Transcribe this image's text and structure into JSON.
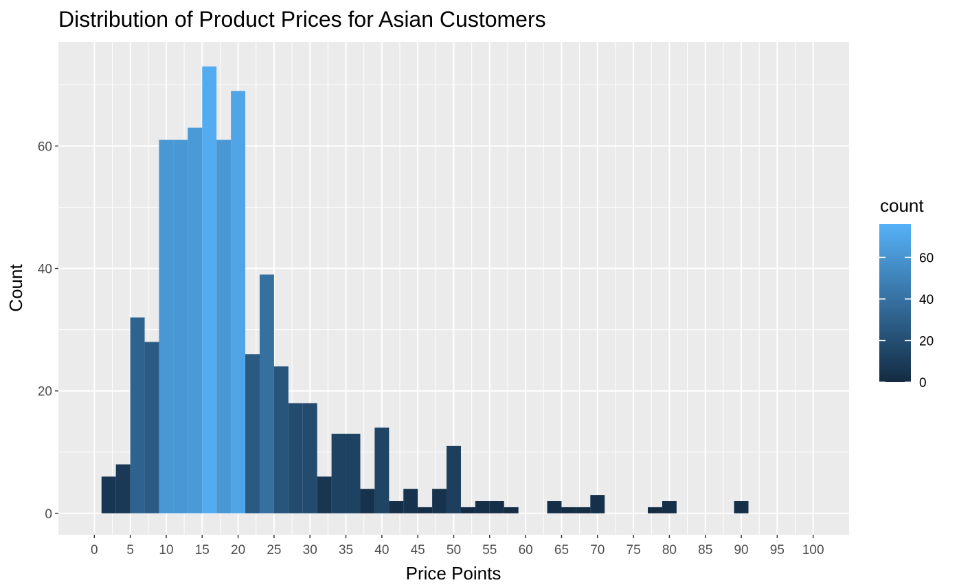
{
  "chart_data": {
    "type": "bar",
    "subtype": "histogram",
    "title": "Distribution of Product Prices for Asian Customers",
    "xlabel": "Price Points",
    "ylabel": "Count",
    "bin_width": 2,
    "xlim": [
      -5,
      105
    ],
    "ylim": [
      -3.5,
      77
    ],
    "x_ticks": [
      0,
      5,
      10,
      15,
      20,
      25,
      30,
      35,
      40,
      45,
      50,
      55,
      60,
      65,
      70,
      75,
      80,
      85,
      90,
      95,
      100
    ],
    "x_tick_labels": [
      "0",
      "5",
      "10",
      "15",
      "20",
      "25",
      "30",
      "35",
      "40",
      "45",
      "50",
      "55",
      "60",
      "65",
      "70",
      "75",
      "80",
      "85",
      "90",
      "95",
      "100"
    ],
    "y_ticks": [
      0,
      20,
      40,
      60
    ],
    "y_tick_labels": [
      "0",
      "20",
      "40",
      "60"
    ],
    "grid": true,
    "bins": [
      {
        "x": 2,
        "count": 6
      },
      {
        "x": 4,
        "count": 8
      },
      {
        "x": 6,
        "count": 32
      },
      {
        "x": 8,
        "count": 28
      },
      {
        "x": 10,
        "count": 61
      },
      {
        "x": 12,
        "count": 61
      },
      {
        "x": 14,
        "count": 63
      },
      {
        "x": 16,
        "count": 73
      },
      {
        "x": 18,
        "count": 61
      },
      {
        "x": 20,
        "count": 69
      },
      {
        "x": 22,
        "count": 26
      },
      {
        "x": 24,
        "count": 39
      },
      {
        "x": 26,
        "count": 24
      },
      {
        "x": 28,
        "count": 18
      },
      {
        "x": 30,
        "count": 18
      },
      {
        "x": 32,
        "count": 6
      },
      {
        "x": 34,
        "count": 13
      },
      {
        "x": 36,
        "count": 13
      },
      {
        "x": 38,
        "count": 4
      },
      {
        "x": 40,
        "count": 14
      },
      {
        "x": 42,
        "count": 2
      },
      {
        "x": 44,
        "count": 4
      },
      {
        "x": 46,
        "count": 1
      },
      {
        "x": 48,
        "count": 4
      },
      {
        "x": 50,
        "count": 11
      },
      {
        "x": 52,
        "count": 1
      },
      {
        "x": 54,
        "count": 2
      },
      {
        "x": 56,
        "count": 2
      },
      {
        "x": 58,
        "count": 1
      },
      {
        "x": 64,
        "count": 2
      },
      {
        "x": 66,
        "count": 1
      },
      {
        "x": 68,
        "count": 1
      },
      {
        "x": 70,
        "count": 3
      },
      {
        "x": 78,
        "count": 1
      },
      {
        "x": 80,
        "count": 2
      },
      {
        "x": 90,
        "count": 2
      }
    ],
    "legend": {
      "title": "count",
      "position": "right",
      "ticks": [
        0,
        20,
        40,
        60
      ],
      "tick_labels": [
        "0",
        "20",
        "40",
        "60"
      ],
      "range": [
        0,
        76
      ],
      "low_color": "#132B43",
      "high_color": "#56B1F7"
    },
    "colors": {
      "panel_background": "#EBEBEB",
      "grid_major": "#FFFFFF"
    }
  }
}
